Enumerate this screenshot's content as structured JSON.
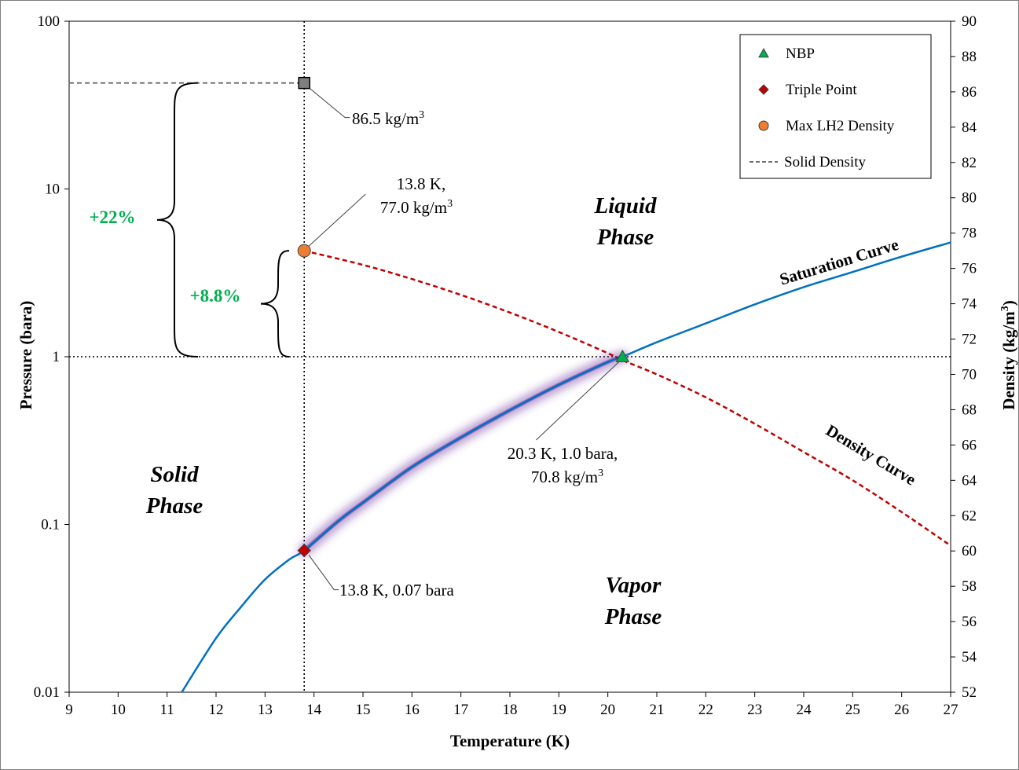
{
  "chart_data": {
    "type": "line",
    "xlabel": "Temperature (K)",
    "ylabel": "Pressure (bara)",
    "y2label": "Density (kg/m3)",
    "y2label_parts": [
      "Density (kg/m",
      "3",
      ")"
    ],
    "xlim": [
      9,
      27
    ],
    "ylim": [
      0.01,
      100
    ],
    "yscale": "log",
    "y2lim": [
      52,
      90
    ],
    "x_ticks": [
      "9",
      "10",
      "11",
      "12",
      "13",
      "14",
      "15",
      "16",
      "17",
      "18",
      "19",
      "20",
      "21",
      "22",
      "23",
      "24",
      "25",
      "26",
      "27"
    ],
    "y_ticks": [
      "0.01",
      "0.1",
      "1",
      "10",
      "100"
    ],
    "y2_ticks": [
      "52",
      "54",
      "56",
      "58",
      "60",
      "62",
      "64",
      "66",
      "68",
      "70",
      "72",
      "74",
      "76",
      "78",
      "80",
      "82",
      "84",
      "86",
      "88",
      "90"
    ],
    "grid": "dotted reference lines at T = 13.8 K and P = 1 bara",
    "legend_position": "top-right",
    "series": [
      {
        "name": "Saturation Curve",
        "axis": "pressure",
        "color": "#0070c0",
        "x": [
          11.3,
          12.0,
          12.5,
          13.0,
          13.5,
          13.8,
          14.5,
          15.0,
          16.0,
          17.0,
          18.0,
          19.0,
          20.0,
          20.3,
          21.0,
          22.0,
          23.0,
          24.0,
          25.0,
          26.0,
          27.0
        ],
        "y": [
          0.01,
          0.021,
          0.032,
          0.047,
          0.062,
          0.07,
          0.105,
          0.135,
          0.22,
          0.33,
          0.48,
          0.68,
          0.93,
          1.0,
          1.22,
          1.58,
          2.05,
          2.6,
          3.2,
          3.95,
          4.8
        ]
      },
      {
        "name": "Density Curve",
        "axis": "density",
        "color": "#c00000",
        "x": [
          13.8,
          15,
          16,
          17,
          18,
          19,
          20,
          20.3,
          21,
          22,
          23,
          24,
          25,
          26,
          27
        ],
        "y": [
          77.0,
          76.2,
          75.4,
          74.5,
          73.5,
          72.4,
          71.2,
          70.8,
          70.0,
          68.7,
          67.2,
          65.6,
          64.0,
          62.2,
          60.3
        ]
      },
      {
        "name": "Solid Density",
        "axis": "density",
        "color": "#595959",
        "x": [
          9,
          13.8
        ],
        "y": [
          86.5,
          86.5
        ]
      }
    ],
    "points": [
      {
        "name": "NBP",
        "x": 20.3,
        "y": 1.0,
        "axis": "pressure",
        "marker": "triangle",
        "color": "#00b050"
      },
      {
        "name": "Triple Point",
        "x": 13.8,
        "y": 0.07,
        "axis": "pressure",
        "marker": "diamond",
        "color": "#c00000"
      },
      {
        "name": "Max LH2 Density",
        "x": 13.8,
        "y": 77.0,
        "axis": "density",
        "marker": "circle",
        "color": "#ed7d31"
      },
      {
        "name": "",
        "x": 13.8,
        "y": 86.5,
        "axis": "density",
        "marker": "square",
        "color": "#7f7f7f"
      }
    ],
    "highlight": {
      "x_start": 13.8,
      "x_end": 20.3,
      "color": "#7030a0"
    },
    "legend": [
      {
        "label": "NBP",
        "marker": "triangle",
        "color": "#00b050"
      },
      {
        "label": "Triple Point",
        "marker": "diamond",
        "color": "#c00000"
      },
      {
        "label": "Max LH2 Density",
        "marker": "circle",
        "color": "#ed7d31"
      },
      {
        "label": "Solid Density",
        "marker": "dash",
        "color": "#595959"
      }
    ],
    "regions": {
      "liquid": [
        "Liquid",
        "Phase"
      ],
      "solid": [
        "Solid",
        "Phase"
      ],
      "vapor": [
        "Vapor",
        "Phase"
      ]
    },
    "curve_labels": {
      "saturation": "Saturation Curve",
      "density": "Density Curve"
    },
    "callouts": {
      "solid_density": {
        "text": "86.5 kg/m",
        "sup": "3"
      },
      "max_density": {
        "line1": "13.8 K,",
        "line2": "77.0 kg/m",
        "sup": "3"
      },
      "nbp": {
        "line1": "20.3 K, 1.0 bara,",
        "line2": "70.8 kg/m",
        "sup": "3"
      },
      "triple": {
        "text": "13.8 K, 0.07 bara"
      }
    },
    "percent_labels": {
      "solid_gain": "+22%",
      "liquid_gain": "+8.8%",
      "color": "#00b050"
    }
  }
}
